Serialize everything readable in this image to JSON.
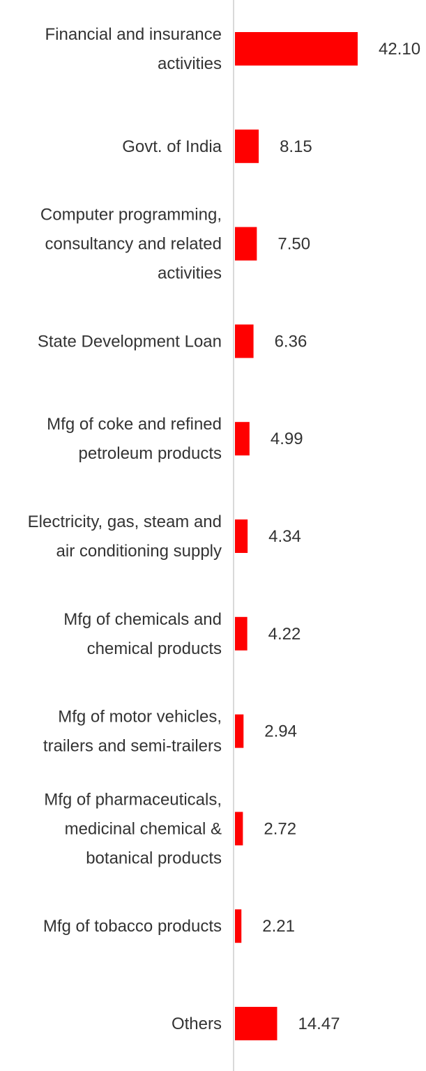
{
  "chart_data": {
    "type": "bar",
    "orientation": "horizontal",
    "bar_color": "#ff0000",
    "axis_color": "#d9d9d9",
    "text_color": "#333333",
    "grid": false,
    "xlim": [
      0,
      42.1
    ],
    "categories": [
      [
        "Financial and insurance",
        "activities"
      ],
      [
        "Govt. of India"
      ],
      [
        "Computer programming,",
        "consultancy and related",
        "activities"
      ],
      [
        "State Development Loan"
      ],
      [
        "Mfg of coke and refined",
        "petroleum products"
      ],
      [
        "Electricity, gas, steam and",
        "air conditioning supply"
      ],
      [
        "Mfg of chemicals and",
        "chemical products"
      ],
      [
        "Mfg of motor vehicles,",
        "trailers and semi-trailers"
      ],
      [
        "Mfg of pharmaceuticals,",
        "medicinal chemical &",
        "botanical products"
      ],
      [
        "Mfg of tobacco products"
      ],
      [
        "Others"
      ]
    ],
    "values": [
      42.1,
      8.15,
      7.5,
      6.36,
      4.99,
      4.34,
      4.22,
      2.94,
      2.72,
      2.21,
      14.47
    ],
    "value_labels": [
      "42.10",
      "8.15",
      "7.50",
      "6.36",
      "4.99",
      "4.34",
      "4.22",
      "2.94",
      "2.72",
      "2.21",
      "14.47"
    ]
  }
}
